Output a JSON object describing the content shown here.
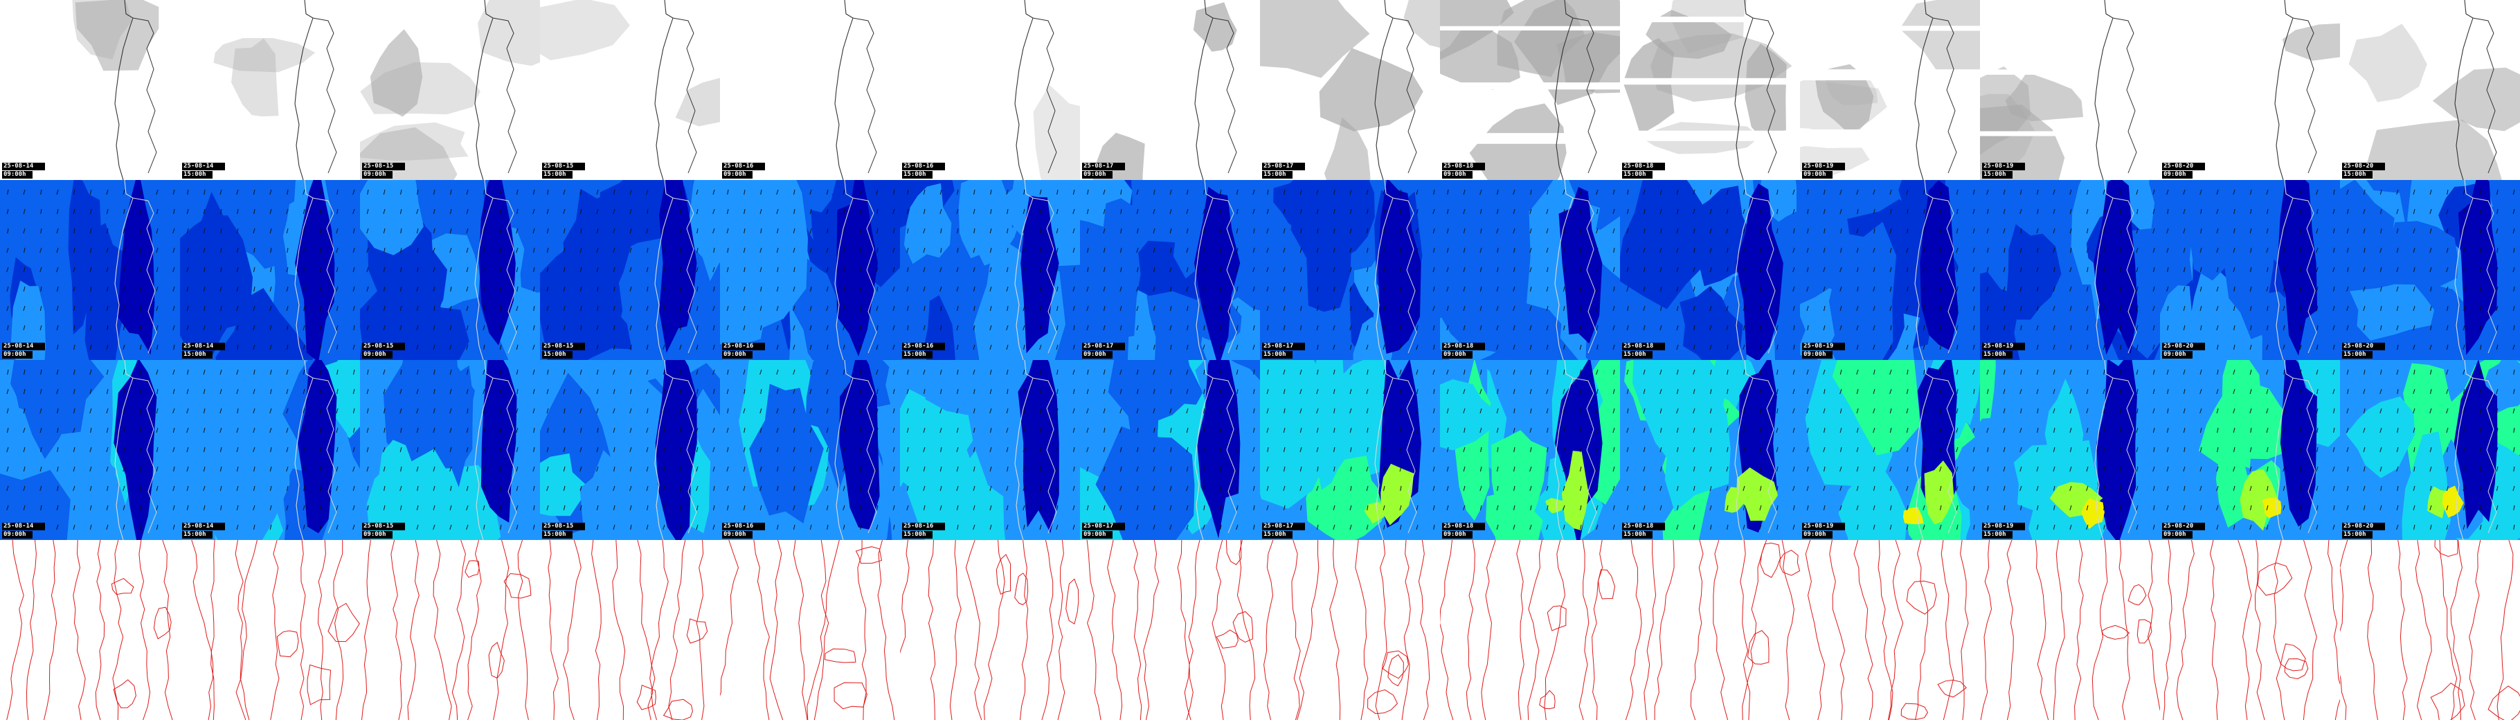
{
  "rows": [
    {
      "key": "clouds",
      "label_name": "cloud-cover"
    },
    {
      "key": "wind_low",
      "label_name": "wind-speed-low"
    },
    {
      "key": "wind_high",
      "label_name": "wind-speed-high"
    },
    {
      "key": "pressure",
      "label_name": "isobars"
    }
  ],
  "columns": [
    {
      "date": "25-08-14",
      "time": "09:00h"
    },
    {
      "date": "25-08-14",
      "time": "15:00h"
    },
    {
      "date": "25-08-15",
      "time": "09:00h"
    },
    {
      "date": "25-08-15",
      "time": "15:00h"
    },
    {
      "date": "25-08-16",
      "time": "09:00h"
    },
    {
      "date": "25-08-16",
      "time": "15:00h"
    },
    {
      "date": "25-08-17",
      "time": "09:00h"
    },
    {
      "date": "25-08-17",
      "time": "15:00h"
    },
    {
      "date": "25-08-18",
      "time": "09:00h"
    },
    {
      "date": "25-08-18",
      "time": "15:00h"
    },
    {
      "date": "25-08-19",
      "time": "09:00h"
    },
    {
      "date": "25-08-19",
      "time": "15:00h"
    },
    {
      "date": "25-08-20",
      "time": "09:00h"
    },
    {
      "date": "25-08-20",
      "time": "15:00h"
    }
  ],
  "colors": {
    "wind_scale": [
      "#0000b4",
      "#0033d6",
      "#0a62ee",
      "#1f96ff",
      "#14d6f0",
      "#22ff96",
      "#9cff32",
      "#f0f000"
    ],
    "cloud": "#a8a8a8",
    "coastline": "#333333",
    "isobar": "#e01818",
    "label_bg": "#000000",
    "label_fg": "#ffffff"
  }
}
